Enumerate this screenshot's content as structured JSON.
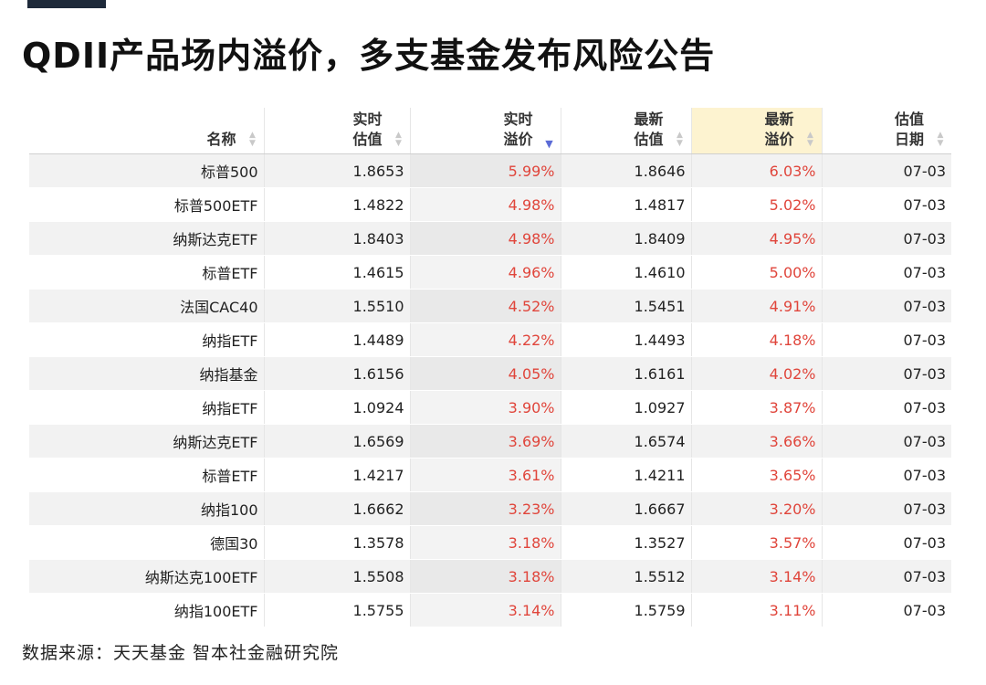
{
  "title": "QDII产品场内溢价，多支基金发布风险公告",
  "table": {
    "headers": [
      {
        "line1": "名称",
        "line2": ""
      },
      {
        "line1": "实时",
        "line2": "估值"
      },
      {
        "line1": "实时",
        "line2": "溢价"
      },
      {
        "line1": "最新",
        "line2": "估值"
      },
      {
        "line1": "最新",
        "line2": "溢价"
      },
      {
        "line1": "估值",
        "line2": "日期"
      }
    ],
    "rows": [
      [
        "标普500",
        "1.8653",
        "5.99%",
        "1.8646",
        "6.03%",
        "07-03"
      ],
      [
        "标普500ETF",
        "1.4822",
        "4.98%",
        "1.4817",
        "5.02%",
        "07-03"
      ],
      [
        "纳斯达克ETF",
        "1.8403",
        "4.98%",
        "1.8409",
        "4.95%",
        "07-03"
      ],
      [
        "标普ETF",
        "1.4615",
        "4.96%",
        "1.4610",
        "5.00%",
        "07-03"
      ],
      [
        "法国CAC40",
        "1.5510",
        "4.52%",
        "1.5451",
        "4.91%",
        "07-03"
      ],
      [
        "纳指ETF",
        "1.4489",
        "4.22%",
        "1.4493",
        "4.18%",
        "07-03"
      ],
      [
        "纳指基金",
        "1.6156",
        "4.05%",
        "1.6161",
        "4.02%",
        "07-03"
      ],
      [
        "纳指ETF",
        "1.0924",
        "3.90%",
        "1.0927",
        "3.87%",
        "07-03"
      ],
      [
        "纳斯达克ETF",
        "1.6569",
        "3.69%",
        "1.6574",
        "3.66%",
        "07-03"
      ],
      [
        "标普ETF",
        "1.4217",
        "3.61%",
        "1.4211",
        "3.65%",
        "07-03"
      ],
      [
        "纳指100",
        "1.6662",
        "3.23%",
        "1.6667",
        "3.20%",
        "07-03"
      ],
      [
        "德国30",
        "1.3578",
        "3.18%",
        "1.3527",
        "3.57%",
        "07-03"
      ],
      [
        "纳斯达克100ETF",
        "1.5508",
        "3.18%",
        "1.5512",
        "3.14%",
        "07-03"
      ],
      [
        "纳指100ETF",
        "1.5755",
        "3.14%",
        "1.5759",
        "3.11%",
        "07-03"
      ]
    ]
  },
  "source": "数据来源：天天基金 智本社金融研究院",
  "colors": {
    "accent_bar": "#1e2a3a",
    "premium_text": "#e0453b",
    "highlight_header": "#fdf3d0",
    "sort_active": "#5b6bd6"
  },
  "icons": {
    "sort_inactive": "sort-icon",
    "sort_active": "sort-descending-icon"
  }
}
